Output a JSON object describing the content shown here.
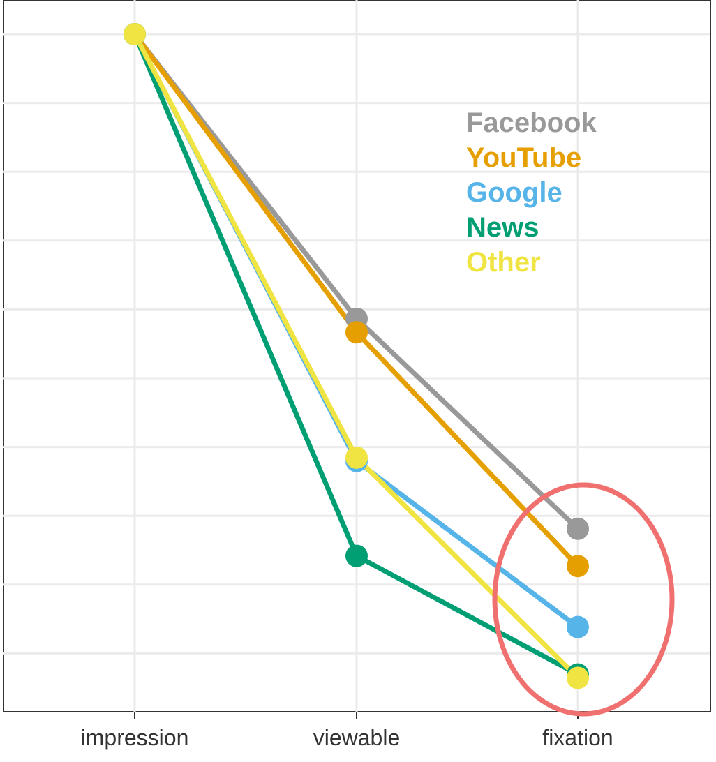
{
  "chart_data": {
    "type": "line",
    "categories": [
      "impression",
      "viewable",
      "fixation"
    ],
    "ylim": [
      0,
      1.03
    ],
    "grid": true,
    "legend_placement": "top-right",
    "series": [
      {
        "name": "Facebook",
        "color": "#999999",
        "values": [
          1.0,
          0.58,
          0.27
        ]
      },
      {
        "name": "YouTube",
        "color": "#E69F00",
        "values": [
          1.0,
          0.56,
          0.215
        ]
      },
      {
        "name": "Google",
        "color": "#56B4E9",
        "values": [
          1.0,
          0.37,
          0.125
        ]
      },
      {
        "name": "News",
        "color": "#009E73",
        "values": [
          1.0,
          0.23,
          0.055
        ]
      },
      {
        "name": "Other",
        "color": "#F0E442",
        "values": [
          1.0,
          0.375,
          0.05
        ]
      }
    ],
    "annotation": {
      "shape": "ellipse",
      "color": "#F07070",
      "around": "fixation"
    }
  }
}
